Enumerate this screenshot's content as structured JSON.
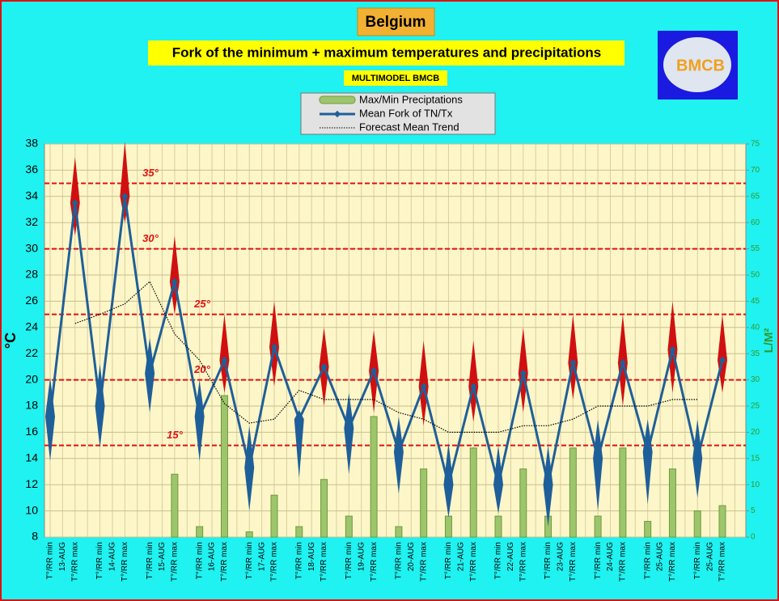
{
  "chart_data": {
    "type": "line",
    "title": "Belgium",
    "subtitle": "Fork of the minimum + maximum temperatures and precipitations",
    "model_label": "MULTIMODEL BMCB",
    "logo_text": "BMCB",
    "y_label": "°C",
    "y2_label": "L/M²",
    "categories": [
      "T°/RR min",
      "T°/RR max",
      "T°/RR min",
      "T°/RR max",
      "T°/RR min",
      "T°/RR max",
      "T°/RR min",
      "T°/RR max",
      "T°/RR min",
      "T°/RR max",
      "T°/RR min",
      "T°/RR max",
      "T°/RR min",
      "T°/RR max",
      "T°/RR min",
      "T°/RR max",
      "T°/RR min",
      "T°/RR max",
      "T°/RR min",
      "T°/RR max",
      "T°/RR min",
      "T°/RR max",
      "T°/RR min",
      "T°/RR max",
      "T°/RR min",
      "T°/RR max",
      "T°/RR min",
      "T°/RR max"
    ],
    "dates": [
      "13-AUG",
      "14-AUG",
      "15-AUG",
      "16-AUG",
      "17-AUG",
      "18-AUG",
      "19-AUG",
      "20-AUG",
      "21-AUG",
      "22-AUG",
      "23-AUG",
      "24-AUG",
      "25-AUG",
      "25-AUG"
    ],
    "ylim": [
      8,
      38
    ],
    "yticks": [
      8,
      10,
      12,
      14,
      16,
      18,
      20,
      22,
      24,
      26,
      28,
      30,
      32,
      34,
      36,
      38
    ],
    "y2lim": [
      0,
      75
    ],
    "y2ticks": [
      0,
      5,
      10,
      15,
      20,
      25,
      30,
      35,
      40,
      45,
      50,
      55,
      60,
      65,
      70,
      75
    ],
    "grid": true,
    "thresholds": [
      {
        "value": 35,
        "label": "35°"
      },
      {
        "value": 30,
        "label": "30°"
      },
      {
        "value": 25,
        "label": "25°"
      },
      {
        "value": 20,
        "label": "20°"
      },
      {
        "value": 15,
        "label": "15°"
      }
    ],
    "threshold_color": "#e01010",
    "series": [
      {
        "name": "Max/Min Preciptations",
        "type": "bar",
        "axis": "y2",
        "color": "#9dc56b",
        "values": [
          null,
          null,
          null,
          null,
          null,
          12,
          2,
          27,
          1,
          8,
          2,
          11,
          4,
          23,
          2,
          13,
          4,
          17,
          4,
          13,
          4,
          17,
          4,
          17,
          3,
          13,
          5,
          6
        ]
      },
      {
        "name": "Mean Fork of TN/Tx",
        "color": "#1f5f99",
        "min_color": "#1f5f99",
        "max_color": "#d01010",
        "values": [
          17.2,
          33.5,
          18,
          34,
          20.5,
          27.5,
          17.2,
          21.5,
          13.3,
          22.5,
          17,
          21,
          16.3,
          20.7,
          14.5,
          19.5,
          12,
          19.5,
          12,
          20.5,
          12,
          21.3,
          14,
          21.3,
          14.5,
          22.3,
          14,
          21.5
        ],
        "fork_low": [
          13.8,
          31,
          14.8,
          32,
          17.5,
          25,
          13.8,
          19,
          10,
          19.5,
          12.5,
          18,
          12.8,
          17.5,
          11.3,
          16.5,
          9.5,
          16.8,
          9.8,
          17.5,
          8.8,
          18.5,
          10,
          18,
          10.5,
          19,
          11,
          19
        ],
        "fork_high": [
          20.2,
          37,
          21.2,
          38.2,
          23.2,
          31,
          20,
          25,
          16.5,
          26,
          17.7,
          24,
          19,
          23.8,
          17.2,
          23,
          15.2,
          23,
          15,
          24,
          15,
          25,
          17,
          25,
          17,
          26,
          17,
          25
        ]
      },
      {
        "name": "Forecast Mean Trend",
        "color": "#000000",
        "values": [
          null,
          24.3,
          25,
          25.8,
          27.5,
          23.5,
          21.5,
          18.2,
          16.7,
          17,
          19.2,
          18.5,
          18.5,
          18.5,
          17.5,
          17,
          16,
          16,
          16,
          16.5,
          16.5,
          17,
          18,
          18,
          18,
          18.5,
          18.5,
          null
        ]
      }
    ]
  }
}
